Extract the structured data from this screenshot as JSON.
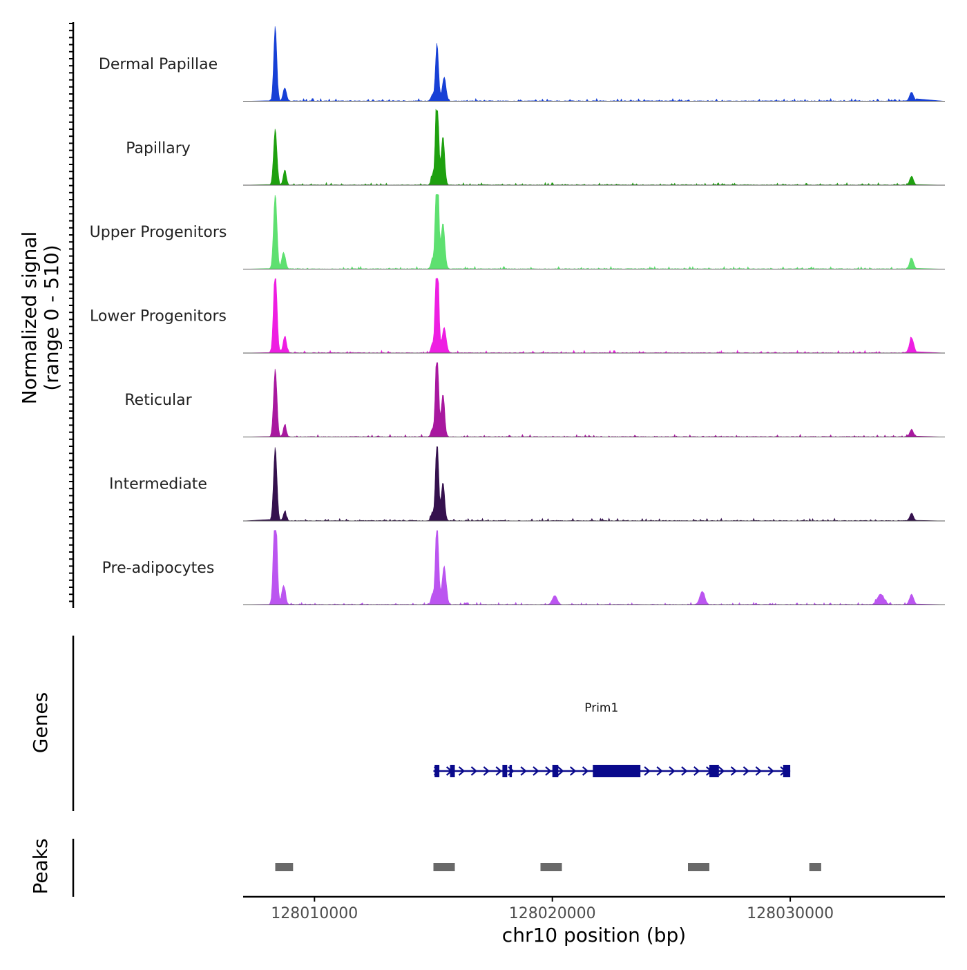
{
  "chart_data": {
    "type": "area",
    "title": "",
    "chromosome": "chr10",
    "xlabel": "chr10 position (bp)",
    "ylabel_line1": "Normalized signal",
    "ylabel_line2": "(range 0 - 510)",
    "xlim": [
      128007000,
      128036500
    ],
    "x_ticks": [
      128010000,
      128020000,
      128030000
    ],
    "x_tick_labels": [
      "128010000",
      "128020000",
      "128030000"
    ],
    "y_range": [
      0,
      510
    ],
    "series": [
      {
        "name": "Dermal Papillae",
        "color": "#1740d6",
        "peaks": [
          {
            "pos": 128008350,
            "height": 510,
            "width": 90
          },
          {
            "pos": 128008750,
            "height": 90,
            "width": 100
          },
          {
            "pos": 128015150,
            "height": 390,
            "width": 90
          },
          {
            "pos": 128015450,
            "height": 160,
            "width": 110
          },
          {
            "pos": 128014950,
            "height": 40,
            "width": 80
          },
          {
            "pos": 128035100,
            "height": 60,
            "width": 120
          }
        ]
      },
      {
        "name": "Papillary",
        "color": "#1ea00f",
        "peaks": [
          {
            "pos": 128008350,
            "height": 380,
            "width": 100
          },
          {
            "pos": 128008750,
            "height": 100,
            "width": 90
          },
          {
            "pos": 128015150,
            "height": 690,
            "width": 90
          },
          {
            "pos": 128015400,
            "height": 330,
            "width": 100
          },
          {
            "pos": 128014950,
            "height": 60,
            "width": 80
          },
          {
            "pos": 128035100,
            "height": 60,
            "width": 110
          }
        ]
      },
      {
        "name": "Upper Progenitors",
        "color": "#5ee070",
        "peaks": [
          {
            "pos": 128008350,
            "height": 520,
            "width": 100
          },
          {
            "pos": 128008700,
            "height": 110,
            "width": 110
          },
          {
            "pos": 128015150,
            "height": 850,
            "width": 90
          },
          {
            "pos": 128015400,
            "height": 310,
            "width": 110
          },
          {
            "pos": 128014950,
            "height": 60,
            "width": 80
          },
          {
            "pos": 128035100,
            "height": 70,
            "width": 120
          }
        ]
      },
      {
        "name": "Lower Progenitors",
        "color": "#ee1ee2",
        "peaks": [
          {
            "pos": 128008350,
            "height": 590,
            "width": 100
          },
          {
            "pos": 128008750,
            "height": 110,
            "width": 100
          },
          {
            "pos": 128015150,
            "height": 850,
            "width": 90
          },
          {
            "pos": 128015450,
            "height": 170,
            "width": 120
          },
          {
            "pos": 128014950,
            "height": 60,
            "width": 80
          },
          {
            "pos": 128035100,
            "height": 100,
            "width": 130
          }
        ]
      },
      {
        "name": "Reticular",
        "color": "#a8189f",
        "peaks": [
          {
            "pos": 128008350,
            "height": 460,
            "width": 100
          },
          {
            "pos": 128008750,
            "height": 80,
            "width": 90
          },
          {
            "pos": 128015150,
            "height": 640,
            "width": 90
          },
          {
            "pos": 128015400,
            "height": 290,
            "width": 100
          },
          {
            "pos": 128014950,
            "height": 50,
            "width": 80
          },
          {
            "pos": 128035100,
            "height": 50,
            "width": 110
          }
        ]
      },
      {
        "name": "Intermediate",
        "color": "#35114e",
        "peaks": [
          {
            "pos": 128008350,
            "height": 500,
            "width": 100
          },
          {
            "pos": 128008750,
            "height": 60,
            "width": 90
          },
          {
            "pos": 128015150,
            "height": 570,
            "width": 90
          },
          {
            "pos": 128015400,
            "height": 260,
            "width": 100
          },
          {
            "pos": 128014950,
            "height": 50,
            "width": 80
          },
          {
            "pos": 128035100,
            "height": 50,
            "width": 110
          }
        ]
      },
      {
        "name": "Pre-adipocytes",
        "color": "#bb55f0",
        "peaks": [
          {
            "pos": 128008350,
            "height": 760,
            "width": 100
          },
          {
            "pos": 128008700,
            "height": 130,
            "width": 110
          },
          {
            "pos": 128015150,
            "height": 610,
            "width": 90
          },
          {
            "pos": 128015450,
            "height": 260,
            "width": 120
          },
          {
            "pos": 128014950,
            "height": 70,
            "width": 80
          },
          {
            "pos": 128020100,
            "height": 60,
            "width": 150
          },
          {
            "pos": 128026300,
            "height": 90,
            "width": 150
          },
          {
            "pos": 128033800,
            "height": 70,
            "width": 200
          },
          {
            "pos": 128035100,
            "height": 70,
            "width": 120
          }
        ]
      }
    ],
    "genes": {
      "label": "Genes",
      "items": [
        {
          "name": "Prim1",
          "start": 128015000,
          "end": 128030000,
          "strand": "+",
          "color": "#0a0a8c",
          "exons": [
            [
              128015050,
              128015250
            ],
            [
              128015700,
              128015900
            ],
            [
              128017900,
              128018100
            ],
            [
              128018200,
              128018300
            ],
            [
              128020000,
              128020250
            ],
            [
              128021700,
              128023700
            ],
            [
              128026600,
              128027000
            ],
            [
              128029700,
              128030000
            ]
          ]
        }
      ]
    },
    "peaks_track": {
      "label": "Peaks",
      "color": "#696969",
      "regions": [
        [
          128008350,
          128009100
        ],
        [
          128015000,
          128015900
        ],
        [
          128019500,
          128020400
        ],
        [
          128025700,
          128026600
        ],
        [
          128030800,
          128031300
        ]
      ]
    }
  }
}
